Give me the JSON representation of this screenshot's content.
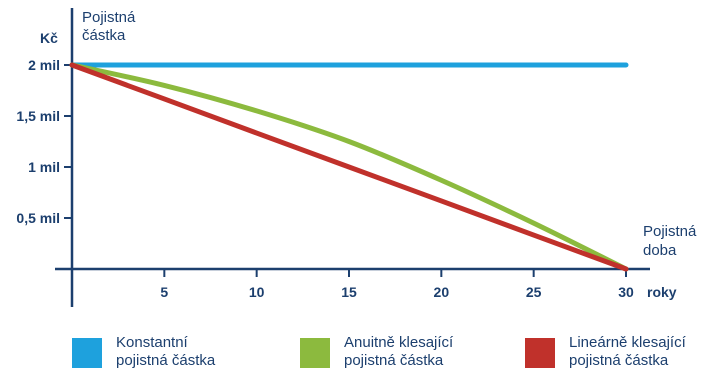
{
  "chart_data": {
    "type": "line",
    "ylabel": "Pojistná\nčástka",
    "yunit": "Kč",
    "xlabel_end": "Pojistná\ndoba",
    "xunit": "roky",
    "xlim": [
      0,
      30
    ],
    "ylim": [
      0,
      2000000
    ],
    "xticks": [
      5,
      10,
      15,
      20,
      25,
      30
    ],
    "yticks": [
      {
        "value": 2000000,
        "label": "2 mil"
      },
      {
        "value": 1500000,
        "label": "1,5 mil"
      },
      {
        "value": 1000000,
        "label": "1 mil"
      },
      {
        "value": 500000,
        "label": "0,5 mil"
      }
    ],
    "grid": false,
    "legend_position": "bottom",
    "series": [
      {
        "name": "Konstantní\npojistná částka",
        "color": "#1ea1dd",
        "x": [
          0,
          5,
          10,
          15,
          20,
          25,
          30
        ],
        "values": [
          2000000,
          2000000,
          2000000,
          2000000,
          2000000,
          2000000,
          2000000
        ]
      },
      {
        "name": "Anuitně klesající\npojistná částka",
        "color": "#8cba3e",
        "x": [
          0,
          5,
          10,
          15,
          20,
          25,
          30
        ],
        "values": [
          2000000,
          1800000,
          1550000,
          1250000,
          870000,
          450000,
          0
        ]
      },
      {
        "name": "Lineárně klesající\npojistná částka",
        "color": "#c0312b",
        "x": [
          0,
          5,
          10,
          15,
          20,
          25,
          30
        ],
        "values": [
          2000000,
          1667000,
          1333000,
          1000000,
          667000,
          333000,
          0
        ]
      }
    ]
  }
}
